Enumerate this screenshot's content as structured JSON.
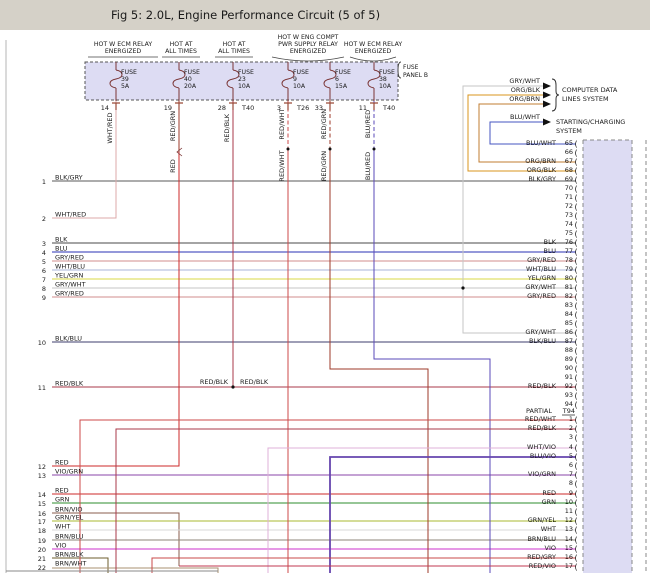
{
  "title": "Fig 5: 2.0L, Engine Performance Circuit (5 of 5)",
  "fuse_panel": {
    "panel_label": [
      "FUSE",
      "PANEL B"
    ],
    "headers": [
      {
        "lines": [
          "HOT W ECM RELAY",
          "ENERGIZED"
        ]
      },
      {
        "lines": [
          "HOT AT",
          "ALL TIMES"
        ]
      },
      {
        "lines": [
          "HOT AT",
          "ALL TIMES"
        ]
      },
      {
        "lines": [
          "HOT W ENG COMPT",
          "PWR SUPPLY RELAY",
          "ENERGIZED"
        ]
      },
      {
        "lines": [
          "HOT W ECM RELAY",
          "ENERGIZED"
        ]
      }
    ],
    "fuses": [
      {
        "label": "FUSE",
        "number": "39",
        "amps": "5A",
        "pin": "14",
        "tag": "",
        "wire": "WHT/RED",
        "wire2": ""
      },
      {
        "label": "FUSE",
        "number": "40",
        "amps": "20A",
        "pin": "19",
        "tag": "",
        "wire": "RED/GRN",
        "wire2": "RED"
      },
      {
        "label": "FUSE",
        "number": "23",
        "amps": "10A",
        "pin": "28",
        "tag": "T40",
        "wire": "RED/BLK",
        "wire2": ""
      },
      {
        "label": "FUSE",
        "number": "9",
        "amps": "10A",
        "pin": "3",
        "tag": "T26",
        "wire": "RED/WHT",
        "wire2": "RED/WHT"
      },
      {
        "label": "FUSE",
        "number": "6",
        "amps": "15A",
        "pin": "33",
        "tag": "",
        "wire": "RED/GRN",
        "wire2": "RED/GRN"
      },
      {
        "label": "FUSE",
        "number": "38",
        "amps": "10A",
        "pin": "11",
        "tag": "T40",
        "wire": "BLU/RED",
        "wire2": "BLU/RED"
      }
    ]
  },
  "systems": {
    "computer_data": {
      "wires": [
        "GRY/WHT",
        "ORG/BLK",
        "ORG/BRN"
      ],
      "lines": [
        "COMPUTER DATA",
        "LINES SYSTEM"
      ]
    },
    "starting_charging": {
      "wires": [
        "BLU/WHT"
      ],
      "lines": [
        "STARTING/CHARGING",
        "SYSTEM"
      ]
    }
  },
  "left_pins": [
    {
      "num": "1",
      "label": "BLK/GRY"
    },
    {
      "num": "2",
      "label": "WHT/RED"
    },
    {
      "num": "3",
      "label": "BLK"
    },
    {
      "num": "4",
      "label": "BLU"
    },
    {
      "num": "5",
      "label": "GRY/RED"
    },
    {
      "num": "6",
      "label": "WHT/BLU"
    },
    {
      "num": "7",
      "label": "YEL/GRN"
    },
    {
      "num": "8",
      "label": "GRY/WHT"
    },
    {
      "num": "9",
      "label": "GRY/RED"
    },
    {
      "num": "10",
      "label": "BLK/BLU"
    },
    {
      "num": "11",
      "label": "RED/BLK"
    },
    {
      "num": "12",
      "label": "RED"
    },
    {
      "num": "13",
      "label": "VIO/GRN"
    },
    {
      "num": "14",
      "label": "RED"
    },
    {
      "num": "15",
      "label": "GRN"
    },
    {
      "num": "16",
      "label": "BRN/VIO"
    },
    {
      "num": "17",
      "label": "GRN/YEL"
    },
    {
      "num": "18",
      "label": "WHT"
    },
    {
      "num": "19",
      "label": "BRN/BLU"
    },
    {
      "num": "20",
      "label": "VIO"
    },
    {
      "num": "21",
      "label": "BRN/BLK"
    },
    {
      "num": "22",
      "label": "BRN/WHT"
    }
  ],
  "right_connector": {
    "pin_symbol": "(",
    "upper_pins": [
      {
        "num": "65",
        "label": "BLU/WHT"
      },
      {
        "num": "66",
        "label": ""
      },
      {
        "num": "67",
        "label": "ORG/BRN"
      },
      {
        "num": "68",
        "label": "ORG/BLK"
      },
      {
        "num": "69",
        "label": "BLK/GRY"
      },
      {
        "num": "70",
        "label": ""
      },
      {
        "num": "71",
        "label": ""
      },
      {
        "num": "72",
        "label": ""
      },
      {
        "num": "73",
        "label": ""
      },
      {
        "num": "74",
        "label": ""
      },
      {
        "num": "75",
        "label": ""
      },
      {
        "num": "76",
        "label": "BLK"
      },
      {
        "num": "77",
        "label": "BLU"
      },
      {
        "num": "78",
        "label": "GRY/RED"
      },
      {
        "num": "79",
        "label": "WHT/BLU"
      },
      {
        "num": "80",
        "label": "YEL/GRN"
      },
      {
        "num": "81",
        "label": "GRY/WHT"
      },
      {
        "num": "82",
        "label": "GRY/RED"
      },
      {
        "num": "83",
        "label": ""
      },
      {
        "num": "84",
        "label": ""
      },
      {
        "num": "85",
        "label": ""
      },
      {
        "num": "86",
        "label": "GRY/WHT"
      },
      {
        "num": "87",
        "label": "BLK/BLU"
      },
      {
        "num": "88",
        "label": ""
      },
      {
        "num": "89",
        "label": ""
      },
      {
        "num": "90",
        "label": ""
      },
      {
        "num": "91",
        "label": ""
      },
      {
        "num": "92",
        "label": "RED/BLK"
      },
      {
        "num": "93",
        "label": ""
      },
      {
        "num": "94",
        "label": ""
      }
    ],
    "partial": {
      "label": "PARTIAL",
      "tag": "T94"
    },
    "lower_pins": [
      {
        "num": "1",
        "label": "RED/WHT"
      },
      {
        "num": "2",
        "label": "RED/BLK"
      },
      {
        "num": "3",
        "label": ""
      },
      {
        "num": "4",
        "label": "WHT/VIO"
      },
      {
        "num": "5",
        "label": "BLU/VIO"
      },
      {
        "num": "6",
        "label": ""
      },
      {
        "num": "7",
        "label": "VIO/GRN"
      },
      {
        "num": "8",
        "label": ""
      },
      {
        "num": "9",
        "label": "RED"
      },
      {
        "num": "10",
        "label": "GRN"
      },
      {
        "num": "11",
        "label": ""
      },
      {
        "num": "12",
        "label": "GRN/YEL"
      },
      {
        "num": "13",
        "label": "WHT"
      },
      {
        "num": "14",
        "label": "BRN/BLU"
      },
      {
        "num": "15",
        "label": "VIO"
      },
      {
        "num": "16",
        "label": "RED/GRY"
      },
      {
        "num": "17",
        "label": "RED/VIO"
      }
    ]
  },
  "splice_labels": {
    "left": "RED/BLK",
    "right": "RED/BLK"
  },
  "colors": {
    "titlebar_bg": "#d5d1c8",
    "panel_fill": "#dddcf3",
    "fuse_symbol": "#7a3434",
    "terminal": "#9a4a38",
    "BLK/GRY": "#5a5a5a",
    "WHT/RED": "#dcaaaa",
    "BLK": "#4a4a4a",
    "BLU": "#2a32b4",
    "GRY/RED": "#d28c8c",
    "WHT/BLU": "#aab6d8",
    "YEL/GRN": "#d8d844",
    "GRY/WHT": "#c6c6c6",
    "BLK/BLU": "#3c3c6e",
    "RED/BLK": "#a83a4a",
    "RED": "#cc2a2a",
    "VIO/GRN": "#8844a8",
    "GRN": "#2e8c2e",
    "BRN/VIO": "#8a5c4c",
    "GRN/YEL": "#a8b832",
    "WHT": "#d8d8d8",
    "BRN/BLU": "#8e8678",
    "VIO": "#cc30cc",
    "BRN/BLK": "#6e5e2e",
    "BRN/WHT": "#a89272",
    "RED/GRN": "#9e3a28",
    "RED/WHT": "#cc4a4a",
    "BLU/RED": "#5a48b8",
    "ORG/BLK": "#d8941e",
    "ORG/BRN": "#c27c32",
    "BLU/WHT": "#4656c0",
    "WHT/VIO": "#dfb0d8",
    "BLU/VIO": "#6646ae",
    "RED/GRY": "#c84848",
    "RED/VIO": "#c23a50"
  }
}
